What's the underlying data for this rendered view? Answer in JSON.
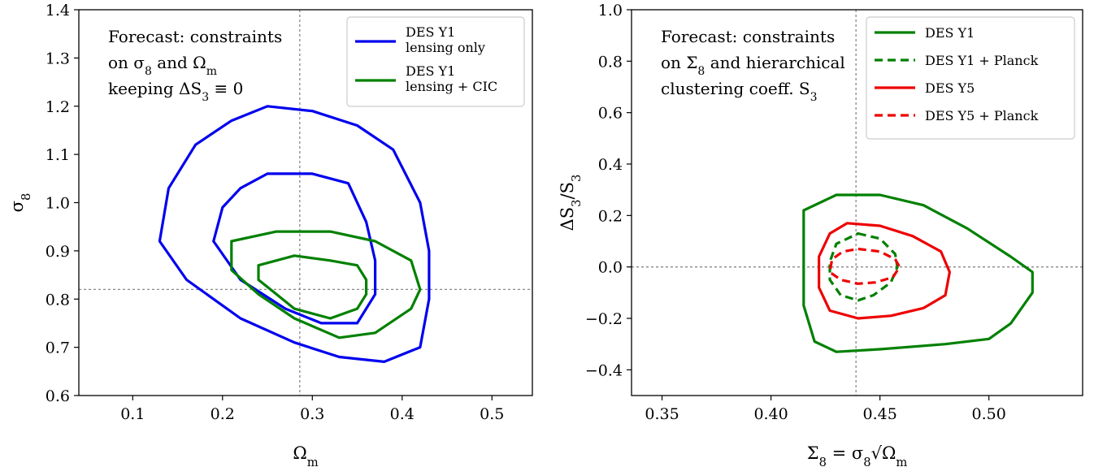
{
  "chart_data": [
    {
      "type": "contour",
      "xlabel": "Ωm",
      "ylabel": "σ8",
      "xlim": [
        0.04,
        0.545
      ],
      "ylim": [
        0.6,
        1.4
      ],
      "xticks": [
        "0.1",
        "0.2",
        "0.3",
        "0.4",
        "0.5"
      ],
      "yticks": [
        "0.6",
        "0.7",
        "0.8",
        "0.9",
        "1.0",
        "1.1",
        "1.2",
        "1.3",
        "1.4"
      ],
      "fiducial": {
        "x": 0.286,
        "y": 0.82
      },
      "annotation": [
        "Forecast: constraints",
        "on σ8 and Ωm",
        "keeping ΔS3 ≡ 0"
      ],
      "legend_position": "top-right",
      "series": [
        {
          "name": "DES Y1 lensing only",
          "legend_lines": [
            "DES Y1",
            "lensing only"
          ],
          "color": "#0000ee",
          "dash": "solid",
          "contours": [
            [
              [
                0.25,
                1.2
              ],
              [
                0.3,
                1.19
              ],
              [
                0.35,
                1.16
              ],
              [
                0.39,
                1.11
              ],
              [
                0.42,
                1.0
              ],
              [
                0.43,
                0.9
              ],
              [
                0.43,
                0.8
              ],
              [
                0.42,
                0.7
              ],
              [
                0.38,
                0.67
              ],
              [
                0.33,
                0.68
              ],
              [
                0.28,
                0.71
              ],
              [
                0.22,
                0.76
              ],
              [
                0.16,
                0.84
              ],
              [
                0.13,
                0.92
              ],
              [
                0.14,
                1.03
              ],
              [
                0.17,
                1.12
              ],
              [
                0.21,
                1.17
              ]
            ],
            [
              [
                0.25,
                1.06
              ],
              [
                0.3,
                1.06
              ],
              [
                0.34,
                1.04
              ],
              [
                0.36,
                0.96
              ],
              [
                0.37,
                0.88
              ],
              [
                0.37,
                0.81
              ],
              [
                0.35,
                0.75
              ],
              [
                0.31,
                0.75
              ],
              [
                0.27,
                0.78
              ],
              [
                0.22,
                0.84
              ],
              [
                0.19,
                0.92
              ],
              [
                0.2,
                0.99
              ],
              [
                0.22,
                1.03
              ]
            ]
          ]
        },
        {
          "name": "DES Y1 lensing + CIC",
          "legend_lines": [
            "DES Y1",
            "lensing + CIC"
          ],
          "color": "#008000",
          "dash": "solid",
          "contours": [
            [
              [
                0.21,
                0.92
              ],
              [
                0.26,
                0.94
              ],
              [
                0.32,
                0.94
              ],
              [
                0.37,
                0.92
              ],
              [
                0.41,
                0.88
              ],
              [
                0.42,
                0.82
              ],
              [
                0.41,
                0.78
              ],
              [
                0.37,
                0.73
              ],
              [
                0.33,
                0.72
              ],
              [
                0.28,
                0.76
              ],
              [
                0.24,
                0.81
              ],
              [
                0.21,
                0.86
              ],
              [
                0.21,
                0.9
              ]
            ],
            [
              [
                0.24,
                0.87
              ],
              [
                0.28,
                0.89
              ],
              [
                0.32,
                0.88
              ],
              [
                0.35,
                0.87
              ],
              [
                0.36,
                0.84
              ],
              [
                0.36,
                0.81
              ],
              [
                0.35,
                0.78
              ],
              [
                0.32,
                0.76
              ],
              [
                0.28,
                0.78
              ],
              [
                0.26,
                0.81
              ],
              [
                0.24,
                0.84
              ]
            ]
          ]
        }
      ]
    },
    {
      "type": "contour",
      "xlabel": "Σ8 = σ8√Ωm",
      "ylabel": "ΔS3/S3",
      "xlim": [
        0.336,
        0.543
      ],
      "ylim": [
        -0.5,
        1.0
      ],
      "xticks": [
        "0.35",
        "0.40",
        "0.45",
        "0.50"
      ],
      "yticks": [
        "−0.4",
        "−0.2",
        "0.0",
        "0.2",
        "0.4",
        "0.6",
        "0.8",
        "1.0"
      ],
      "fiducial": {
        "x": 0.439,
        "y": 0.0
      },
      "annotation": [
        "Forecast: constraints",
        "on Σ8 and hierarchical",
        "clustering coeff. S3"
      ],
      "legend_position": "top-right",
      "series": [
        {
          "name": "DES Y1",
          "color": "#008000",
          "dash": "solid",
          "contour": [
            [
              0.43,
              0.28
            ],
            [
              0.45,
              0.28
            ],
            [
              0.47,
              0.24
            ],
            [
              0.49,
              0.15
            ],
            [
              0.51,
              0.04
            ],
            [
              0.52,
              -0.02
            ],
            [
              0.52,
              -0.1
            ],
            [
              0.51,
              -0.22
            ],
            [
              0.5,
              -0.28
            ],
            [
              0.48,
              -0.3
            ],
            [
              0.45,
              -0.32
            ],
            [
              0.43,
              -0.33
            ],
            [
              0.42,
              -0.29
            ],
            [
              0.415,
              -0.15
            ],
            [
              0.415,
              0.05
            ],
            [
              0.415,
              0.22
            ]
          ]
        },
        {
          "name": "DES Y1 + Planck",
          "color": "#008000",
          "dash": "dashed",
          "contour": [
            [
              0.44,
              0.13
            ],
            [
              0.45,
              0.11
            ],
            [
              0.457,
              0.05
            ],
            [
              0.458,
              0.0
            ],
            [
              0.455,
              -0.06
            ],
            [
              0.447,
              -0.11
            ],
            [
              0.44,
              -0.13
            ],
            [
              0.432,
              -0.11
            ],
            [
              0.427,
              -0.05
            ],
            [
              0.427,
              0.02
            ],
            [
              0.43,
              0.09
            ]
          ]
        },
        {
          "name": "DES Y5",
          "color": "#ee0000",
          "dash": "solid",
          "contour": [
            [
              0.435,
              0.17
            ],
            [
              0.45,
              0.16
            ],
            [
              0.465,
              0.12
            ],
            [
              0.478,
              0.06
            ],
            [
              0.482,
              -0.02
            ],
            [
              0.48,
              -0.11
            ],
            [
              0.47,
              -0.16
            ],
            [
              0.455,
              -0.19
            ],
            [
              0.44,
              -0.2
            ],
            [
              0.427,
              -0.17
            ],
            [
              0.422,
              -0.08
            ],
            [
              0.422,
              0.04
            ],
            [
              0.427,
              0.13
            ]
          ]
        },
        {
          "name": "DES Y5 + Planck",
          "color": "#ee0000",
          "dash": "dashed",
          "contour": [
            [
              0.44,
              0.07
            ],
            [
              0.45,
              0.06
            ],
            [
              0.457,
              0.03
            ],
            [
              0.459,
              0.0
            ],
            [
              0.456,
              -0.04
            ],
            [
              0.448,
              -0.06
            ],
            [
              0.44,
              -0.065
            ],
            [
              0.432,
              -0.05
            ],
            [
              0.427,
              -0.02
            ],
            [
              0.428,
              0.03
            ],
            [
              0.433,
              0.06
            ]
          ]
        }
      ]
    }
  ]
}
